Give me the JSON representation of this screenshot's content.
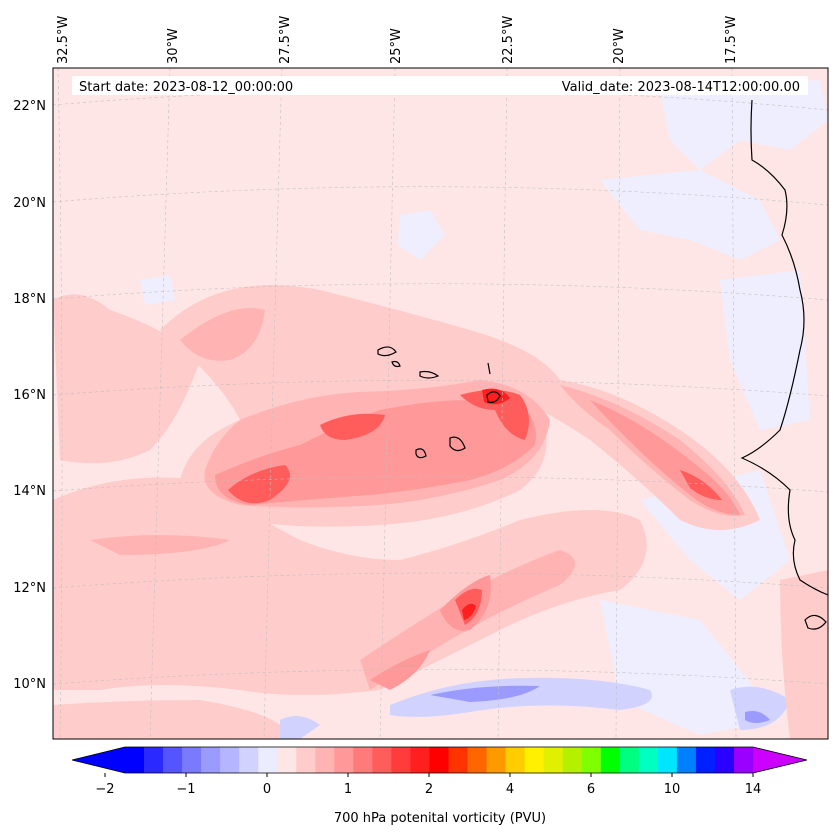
{
  "header": {
    "start_date": "Start date: 2023-08-12_00:00:00",
    "valid_date": "Valid_date: 2023-08-14T12:00:00.00"
  },
  "map": {
    "lon_labels": [
      "32.5°W",
      "30°W",
      "27.5°W",
      "25°W",
      "22.5°W",
      "20°W",
      "17.5°W"
    ],
    "lat_labels": [
      "22°N",
      "20°N",
      "18°N",
      "16°N",
      "14°N",
      "12°N",
      "10°N"
    ],
    "gridlines": true,
    "coastline_color": "#000000"
  },
  "colorbar": {
    "label": "700 hPa potenital vorticity (PVU)",
    "tick_labels": [
      "−2",
      "−1",
      "0",
      "1",
      "2",
      "4",
      "6",
      "10",
      "14"
    ],
    "colors": [
      "#0000ff",
      "#2a2aff",
      "#5555ff",
      "#7a7aff",
      "#9a9aff",
      "#b5b5ff",
      "#d2d2ff",
      "#ececff",
      "#ffe6e6",
      "#ffcccc",
      "#ffb3b3",
      "#ff9999",
      "#ff7a7a",
      "#ff5c5c",
      "#ff3b3b",
      "#ff1f1f",
      "#ff0000",
      "#ff3300",
      "#ff6600",
      "#ff9900",
      "#ffcc00",
      "#fff000",
      "#e0f000",
      "#b5f000",
      "#80ff00",
      "#00ff00",
      "#00ff80",
      "#00ffc0",
      "#00e6ff",
      "#0080ff",
      "#0020ff",
      "#2a00ff",
      "#9900ff"
    ],
    "under_color": "#0000ff",
    "over_color": "#cc00ff"
  }
}
